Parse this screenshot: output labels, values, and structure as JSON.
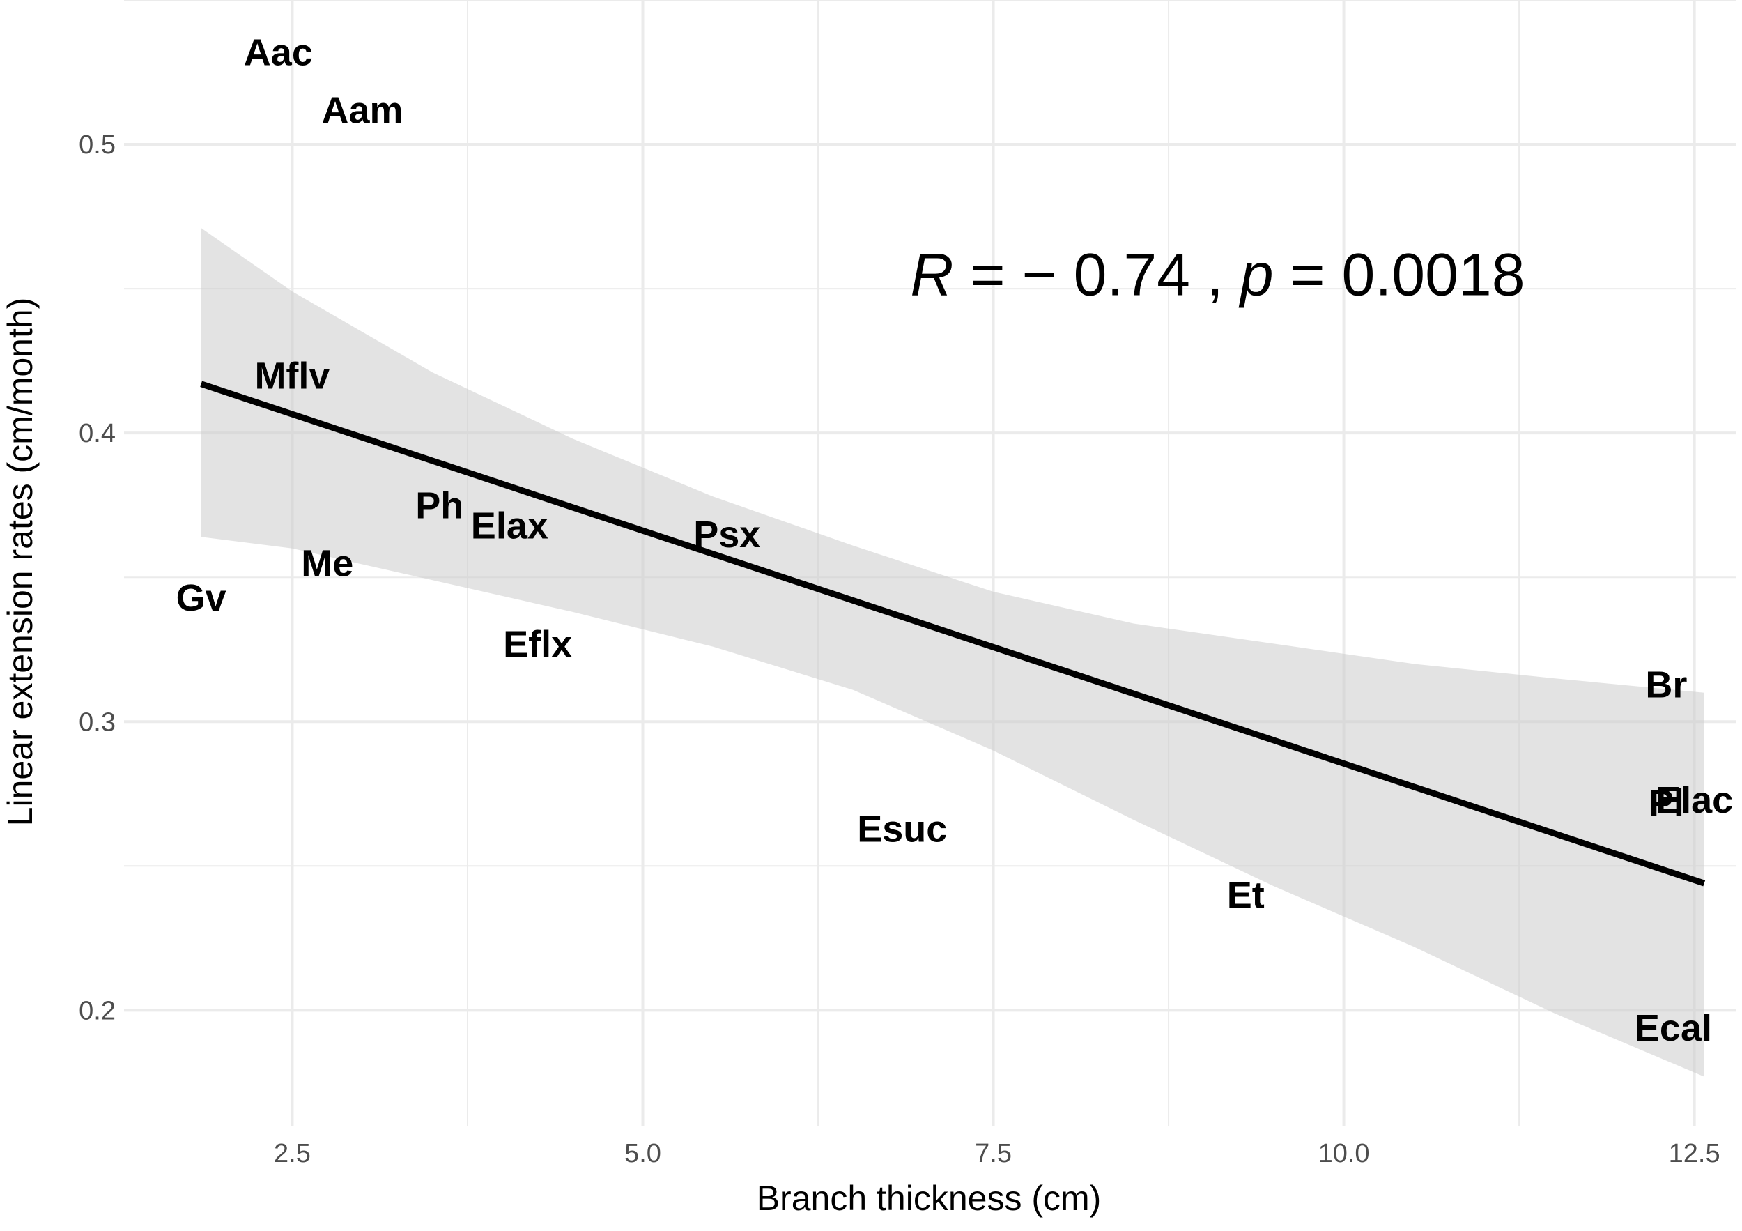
{
  "chart_data": {
    "type": "scatter",
    "title": "",
    "xlabel": "Branch thickness (cm)",
    "ylabel": "Linear extension rates (cm/month)",
    "xlim": [
      1.3,
      12.8
    ],
    "ylim": [
      0.16,
      0.55
    ],
    "x_major_ticks": [
      2.5,
      5.0,
      7.5,
      10.0,
      12.5
    ],
    "x_tick_labels": [
      "2.5",
      "5.0",
      "7.5",
      "10.0",
      "12.5"
    ],
    "y_major_ticks": [
      0.2,
      0.3,
      0.4,
      0.5
    ],
    "y_tick_labels": [
      "0.2",
      "0.3",
      "0.4",
      "0.5"
    ],
    "grid": true,
    "legend": "none",
    "annotation": {
      "x": 9.1,
      "y": 0.455,
      "parts": [
        {
          "text": "R",
          "italic": true
        },
        {
          "text": " = − 0.74 , ",
          "italic": false
        },
        {
          "text": "p",
          "italic": true
        },
        {
          "text": " = 0.0018",
          "italic": false
        }
      ]
    },
    "points": [
      {
        "label": "Aac",
        "x": 2.4,
        "y": 0.532
      },
      {
        "label": "Aam",
        "x": 3.0,
        "y": 0.512
      },
      {
        "label": "Mflv",
        "x": 2.5,
        "y": 0.42
      },
      {
        "label": "Ph",
        "x": 3.55,
        "y": 0.375
      },
      {
        "label": "Elax",
        "x": 4.05,
        "y": 0.368
      },
      {
        "label": "Psx",
        "x": 5.6,
        "y": 0.365
      },
      {
        "label": "Me",
        "x": 2.75,
        "y": 0.355
      },
      {
        "label": "Gv",
        "x": 1.85,
        "y": 0.343
      },
      {
        "label": "Eflx",
        "x": 4.25,
        "y": 0.327
      },
      {
        "label": "Br",
        "x": 12.3,
        "y": 0.313
      },
      {
        "label": "Elac",
        "x": 12.5,
        "y": 0.273
      },
      {
        "label": "Pl",
        "x": 12.3,
        "y": 0.272
      },
      {
        "label": "Esuc",
        "x": 6.85,
        "y": 0.263
      },
      {
        "label": "Et",
        "x": 9.3,
        "y": 0.24
      },
      {
        "label": "Ecal",
        "x": 12.35,
        "y": 0.194
      }
    ],
    "fit_line": {
      "x": [
        1.85,
        12.57
      ],
      "y": [
        0.417,
        0.244
      ]
    },
    "confidence_band": {
      "x": [
        1.85,
        2.5,
        3.5,
        4.5,
        5.5,
        6.5,
        7.5,
        8.5,
        9.5,
        10.5,
        11.5,
        12.57
      ],
      "upper": [
        0.471,
        0.449,
        0.421,
        0.398,
        0.378,
        0.361,
        0.345,
        0.334,
        0.327,
        0.32,
        0.315,
        0.31
      ],
      "lower": [
        0.364,
        0.36,
        0.349,
        0.338,
        0.326,
        0.311,
        0.29,
        0.266,
        0.243,
        0.222,
        0.199,
        0.177
      ]
    },
    "colors": {
      "line": "#000000",
      "band": "#cccccc",
      "grid": "#ebebeb",
      "tick_text": "#4d4d4d",
      "label_text": "#000000"
    }
  }
}
